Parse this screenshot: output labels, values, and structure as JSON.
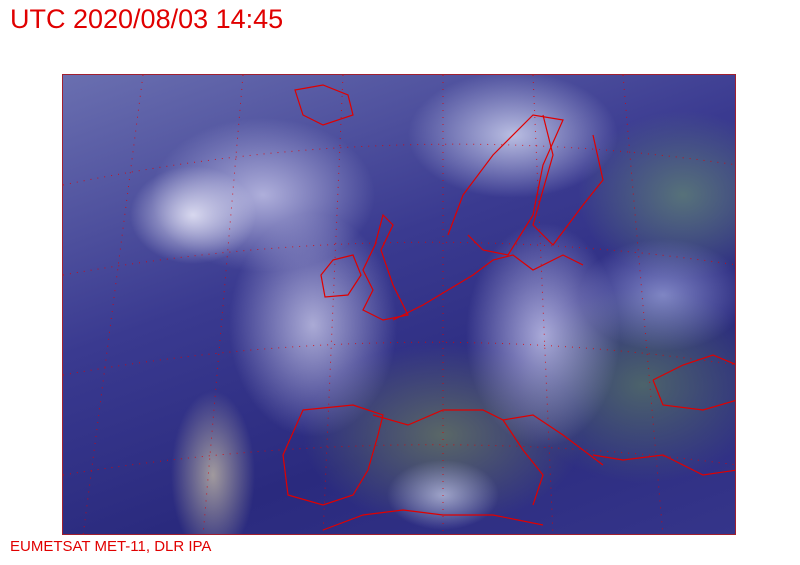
{
  "header": {
    "title": "UTC 2020/08/03 14:45"
  },
  "map": {
    "type": "satellite-image",
    "region": "Europe and North Atlantic",
    "border_color": "#e00000",
    "grid_color": "#e00000"
  },
  "footer": {
    "credit": "EUMETSAT MET-11, DLR IPA"
  }
}
